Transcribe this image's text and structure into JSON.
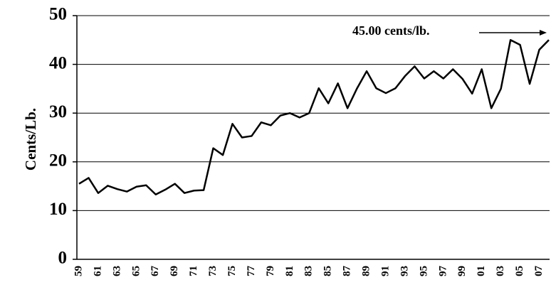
{
  "chart_data": {
    "type": "line",
    "y_label": "Cents/Lb.",
    "annotation": "45.00 cents/lb.",
    "categories": [
      "59",
      null,
      "61",
      null,
      "63",
      null,
      "65",
      null,
      "67",
      null,
      "69",
      null,
      "71",
      null,
      "73",
      null,
      "75",
      null,
      "77",
      null,
      "79",
      null,
      "81",
      null,
      "83",
      null,
      "85",
      null,
      "87",
      null,
      "89",
      null,
      "91",
      null,
      "93",
      null,
      "95",
      null,
      "97",
      null,
      "99",
      null,
      "01",
      null,
      "03",
      null,
      "05",
      null,
      "07",
      null
    ],
    "values": [
      15.5,
      16.7,
      13.6,
      15.1,
      14.4,
      13.9,
      14.9,
      15.2,
      13.3,
      14.3,
      15.5,
      13.6,
      14.1,
      14.2,
      22.8,
      21.4,
      27.8,
      25.0,
      25.3,
      28.1,
      27.5,
      29.5,
      30.0,
      29.1,
      30.0,
      35.1,
      32.0,
      36.1,
      31.0,
      35.1,
      38.6,
      35.1,
      34.1,
      35.1,
      37.6,
      39.6,
      37.1,
      38.6,
      37.1,
      39.0,
      37.0,
      34.0,
      39.0,
      31.0,
      35.0,
      45.0,
      44.0,
      36.0,
      43.0,
      45.0
    ],
    "color": "#000000",
    "ylim": [
      0,
      50
    ],
    "yticks": [
      0,
      10,
      20,
      30,
      40,
      50
    ],
    "grid": true
  }
}
